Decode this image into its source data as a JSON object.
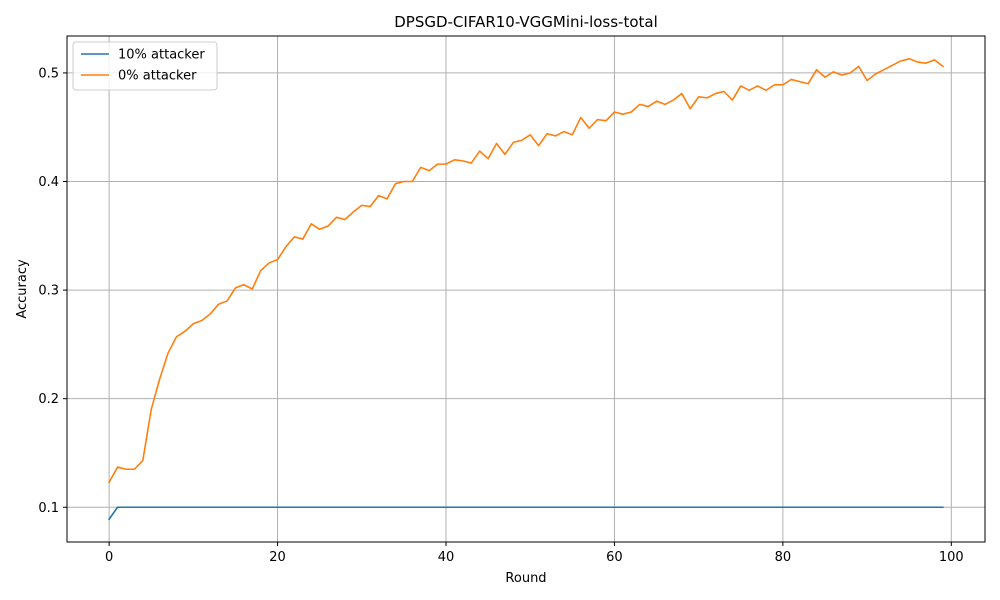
{
  "chart_data": {
    "type": "line",
    "title": "DPSGD-CIFAR10-VGGMini-loss-total",
    "xlabel": "Round",
    "ylabel": "Accuracy",
    "xlim": [
      -5,
      104
    ],
    "ylim": [
      0.068,
      0.534
    ],
    "xticks": [
      0,
      20,
      40,
      60,
      80,
      100
    ],
    "yticks": [
      0.1,
      0.2,
      0.3,
      0.4,
      0.5
    ],
    "grid": true,
    "legend_position": "top-left",
    "series": [
      {
        "name": "10% attacker",
        "color": "#1f77b4",
        "x": [
          0,
          1,
          99
        ],
        "y": [
          0.089,
          0.1,
          0.1
        ]
      },
      {
        "name": "0% attacker",
        "color": "#ff7f0e",
        "x": [
          0,
          1,
          2,
          3,
          4,
          5,
          6,
          7,
          8,
          9,
          10,
          11,
          12,
          13,
          14,
          15,
          16,
          17,
          18,
          19,
          20,
          21,
          22,
          23,
          24,
          25,
          26,
          27,
          28,
          29,
          30,
          31,
          32,
          33,
          34,
          35,
          36,
          37,
          38,
          39,
          40,
          41,
          42,
          43,
          44,
          45,
          46,
          47,
          48,
          49,
          50,
          51,
          52,
          53,
          54,
          55,
          56,
          57,
          58,
          59,
          60,
          61,
          62,
          63,
          64,
          65,
          66,
          67,
          68,
          69,
          70,
          71,
          72,
          73,
          74,
          75,
          76,
          77,
          78,
          79,
          80,
          81,
          82,
          83,
          84,
          85,
          86,
          87,
          88,
          89,
          90,
          91,
          92,
          93,
          94,
          95,
          96,
          97,
          98,
          99
        ],
        "y": [
          0.123,
          0.137,
          0.135,
          0.135,
          0.143,
          0.19,
          0.218,
          0.242,
          0.257,
          0.262,
          0.269,
          0.272,
          0.278,
          0.287,
          0.29,
          0.302,
          0.305,
          0.301,
          0.318,
          0.325,
          0.328,
          0.34,
          0.349,
          0.347,
          0.361,
          0.356,
          0.359,
          0.367,
          0.365,
          0.372,
          0.378,
          0.377,
          0.387,
          0.384,
          0.398,
          0.4,
          0.4,
          0.413,
          0.41,
          0.416,
          0.416,
          0.42,
          0.419,
          0.417,
          0.428,
          0.421,
          0.435,
          0.425,
          0.436,
          0.438,
          0.443,
          0.433,
          0.444,
          0.442,
          0.446,
          0.443,
          0.459,
          0.449,
          0.457,
          0.456,
          0.464,
          0.462,
          0.464,
          0.471,
          0.469,
          0.474,
          0.471,
          0.475,
          0.481,
          0.467,
          0.478,
          0.477,
          0.481,
          0.483,
          0.475,
          0.488,
          0.484,
          0.488,
          0.484,
          0.489,
          0.489,
          0.494,
          0.492,
          0.49,
          0.503,
          0.496,
          0.501,
          0.498,
          0.5,
          0.506,
          0.493,
          0.499,
          0.503,
          0.507,
          0.511,
          0.513,
          0.51,
          0.509,
          0.512,
          0.506
        ]
      }
    ]
  }
}
